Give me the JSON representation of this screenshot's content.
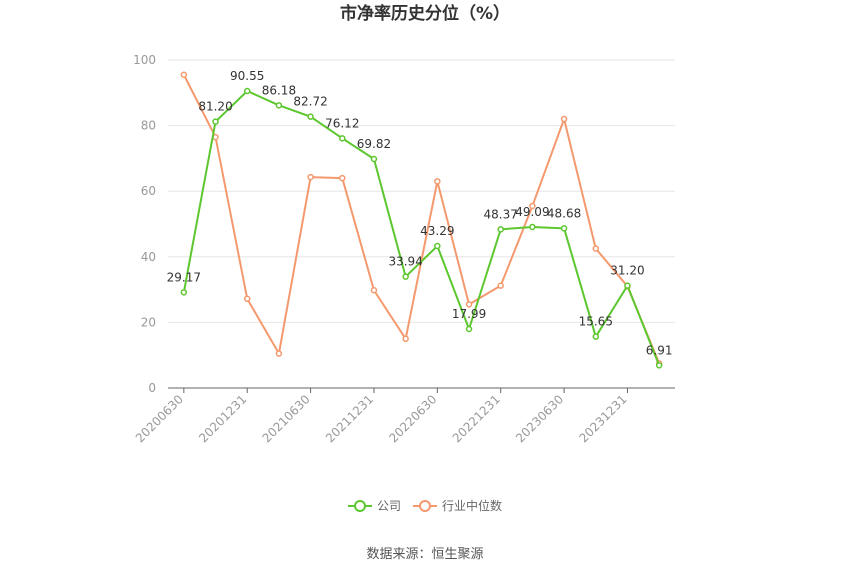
{
  "chart_data": {
    "type": "line",
    "title": "市净率历史分位（%）",
    "xlabel": "",
    "ylabel": "",
    "ylim": [
      0,
      100
    ],
    "yticks": [
      0,
      20,
      40,
      60,
      80,
      100
    ],
    "x": [
      "20200630",
      "20200930",
      "20201231",
      "20210331",
      "20210630",
      "20210930",
      "20211231",
      "20220331",
      "20220630",
      "20220930",
      "20221231",
      "20230331",
      "20230630",
      "20230930",
      "20231231",
      "20240331"
    ],
    "xtick_labels": [
      "20200630",
      "20201231",
      "20210630",
      "20211231",
      "20220630",
      "20221231",
      "20230630",
      "20231231"
    ],
    "grid": true,
    "legend_position": "bottom",
    "series": [
      {
        "name": "公司",
        "color": "#5CC72E",
        "values": [
          29.17,
          81.2,
          90.55,
          86.18,
          82.72,
          76.12,
          69.82,
          33.94,
          43.29,
          17.99,
          48.37,
          49.09,
          48.68,
          15.65,
          31.2,
          6.91
        ],
        "labels": [
          "29.17",
          "81.20",
          "90.55",
          "86.18",
          "82.72",
          "76.12",
          "69.82",
          "33.94",
          "43.29",
          "17.99",
          "48.37",
          "49.09",
          "48.68",
          "15.65",
          "31.20",
          "6.91"
        ]
      },
      {
        "name": "行业中位数",
        "color": "#F4996E",
        "values": [
          95.5,
          76.5,
          27.2,
          10.5,
          64.3,
          64.0,
          29.8,
          15.0,
          63.0,
          25.5,
          31.2,
          55.5,
          82.0,
          42.5,
          31.0,
          7.5
        ]
      }
    ],
    "source": "数据来源：恒生聚源"
  }
}
